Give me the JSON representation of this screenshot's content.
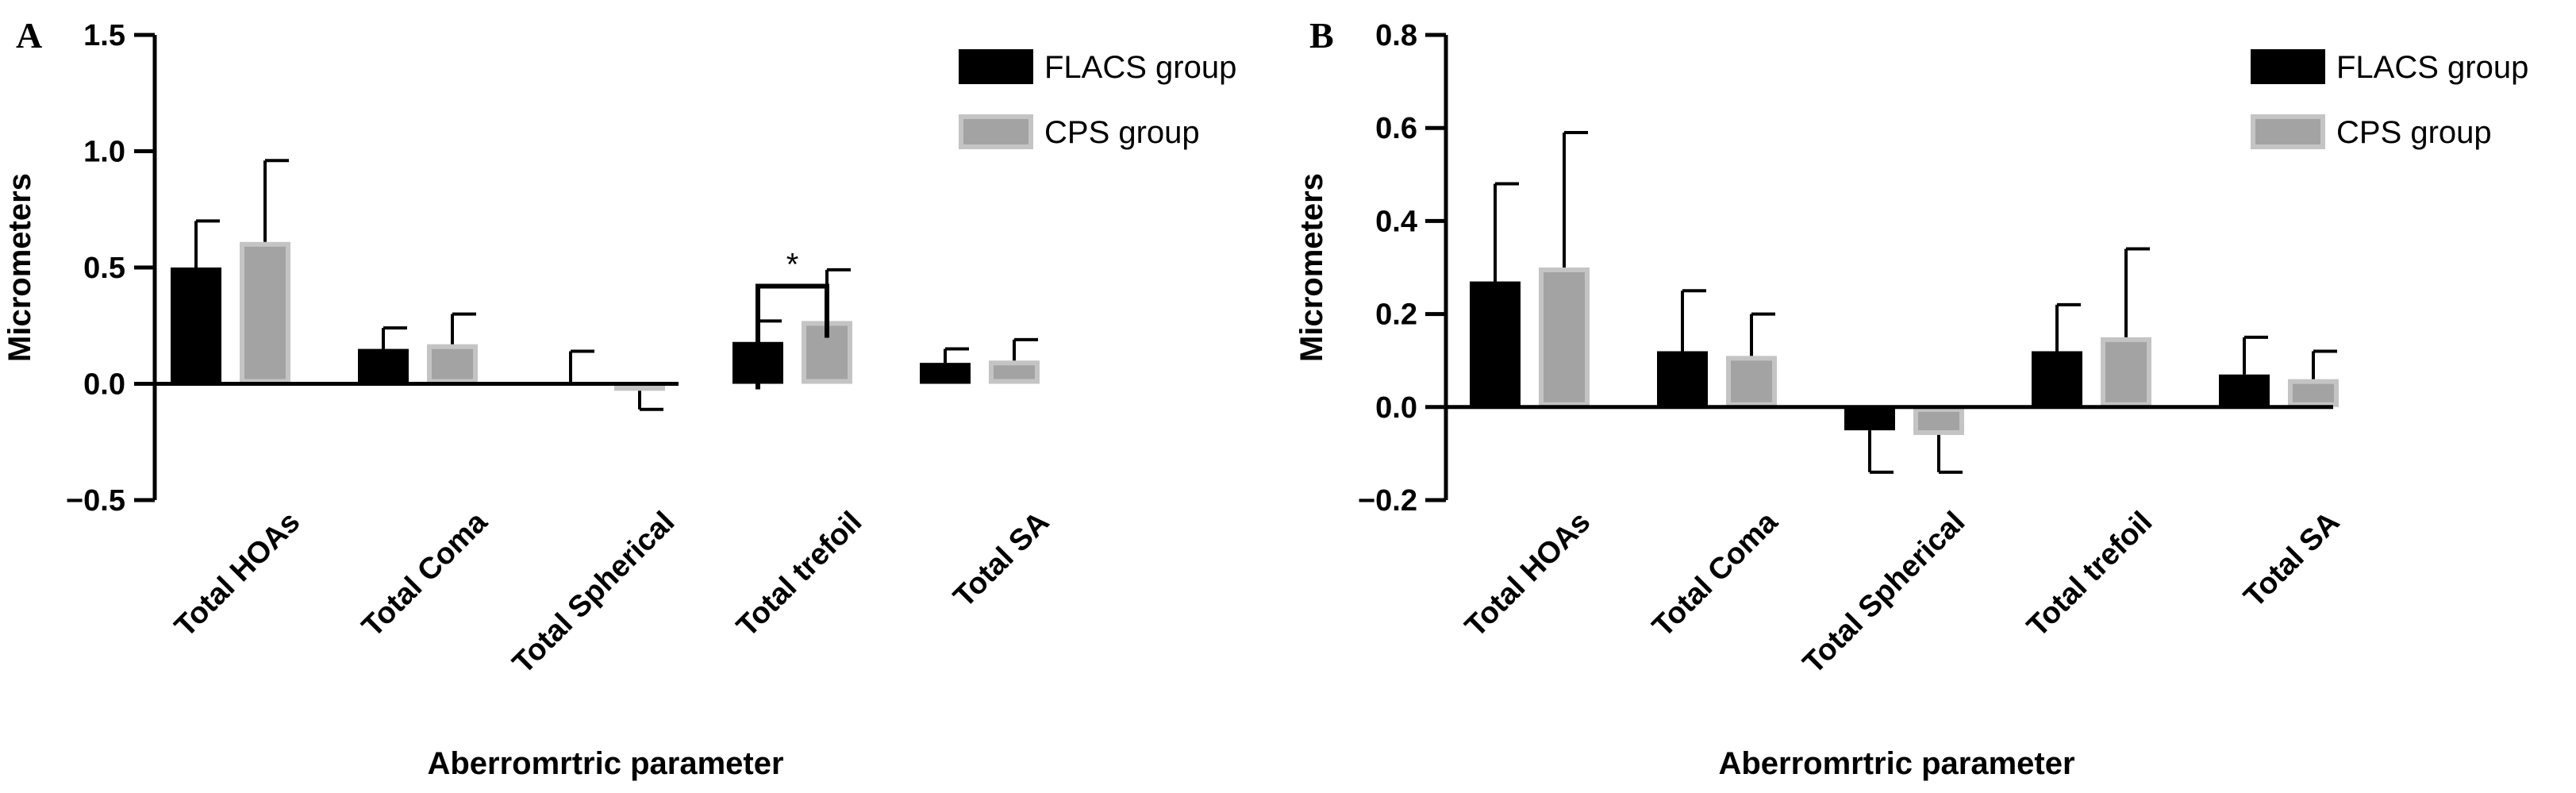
{
  "figure": {
    "x_axis_title": "Aberromrtric parameter",
    "y_axis_title": "Micrometers"
  },
  "colors": {
    "flacs": "#000000",
    "cps": "#a3a3a3",
    "cps_border": "#c4c4c4",
    "axis": "#000000"
  },
  "chart_data": [
    {
      "panel": "A",
      "type": "bar",
      "title": "",
      "xlabel": "Aberromrtric parameter",
      "ylabel": "Micrometers",
      "ylim": [
        -0.5,
        1.5
      ],
      "yticks": [
        -0.5,
        0.0,
        0.5,
        1.0,
        1.5
      ],
      "ytick_labels": [
        "−0.5",
        "0.0",
        "0.5",
        "1.0",
        "1.5"
      ],
      "categories": [
        "Total HOAs",
        "Total Coma",
        "Total Spherical",
        "Total trefoil",
        "Total  SA"
      ],
      "legend": "top-right",
      "series": [
        {
          "name": "FLACS group",
          "values": [
            0.5,
            0.15,
            0.0,
            0.18,
            0.09
          ],
          "errors": [
            0.2,
            0.09,
            0.14,
            0.09,
            0.06
          ]
        },
        {
          "name": "CPS group",
          "values": [
            0.61,
            0.17,
            -0.03,
            0.27,
            0.1
          ],
          "errors": [
            0.35,
            0.13,
            0.08,
            0.22,
            0.09
          ]
        }
      ],
      "annotations": [
        {
          "text": "*",
          "category": "Total trefoil",
          "y": 0.42
        }
      ]
    },
    {
      "panel": "B",
      "type": "bar",
      "title": "",
      "xlabel": "Aberromrtric parameter",
      "ylabel": "Micrometers",
      "ylim": [
        -0.2,
        0.8
      ],
      "yticks": [
        -0.2,
        0.0,
        0.2,
        0.4,
        0.6,
        0.8
      ],
      "ytick_labels": [
        "−0.2",
        "0.0",
        "0.2",
        "0.4",
        "0.6",
        "0.8"
      ],
      "categories": [
        "Total HOAs",
        "Total Coma",
        "Total Spherical",
        "Total trefoil",
        "Total  SA"
      ],
      "legend": "top-right",
      "series": [
        {
          "name": "FLACS group",
          "values": [
            0.27,
            0.12,
            -0.05,
            0.12,
            0.07
          ],
          "errors": [
            0.21,
            0.13,
            0.09,
            0.1,
            0.08
          ]
        },
        {
          "name": "CPS group",
          "values": [
            0.3,
            0.11,
            -0.06,
            0.15,
            0.06
          ],
          "errors": [
            0.29,
            0.09,
            0.08,
            0.19,
            0.06
          ]
        }
      ],
      "annotations": []
    }
  ]
}
